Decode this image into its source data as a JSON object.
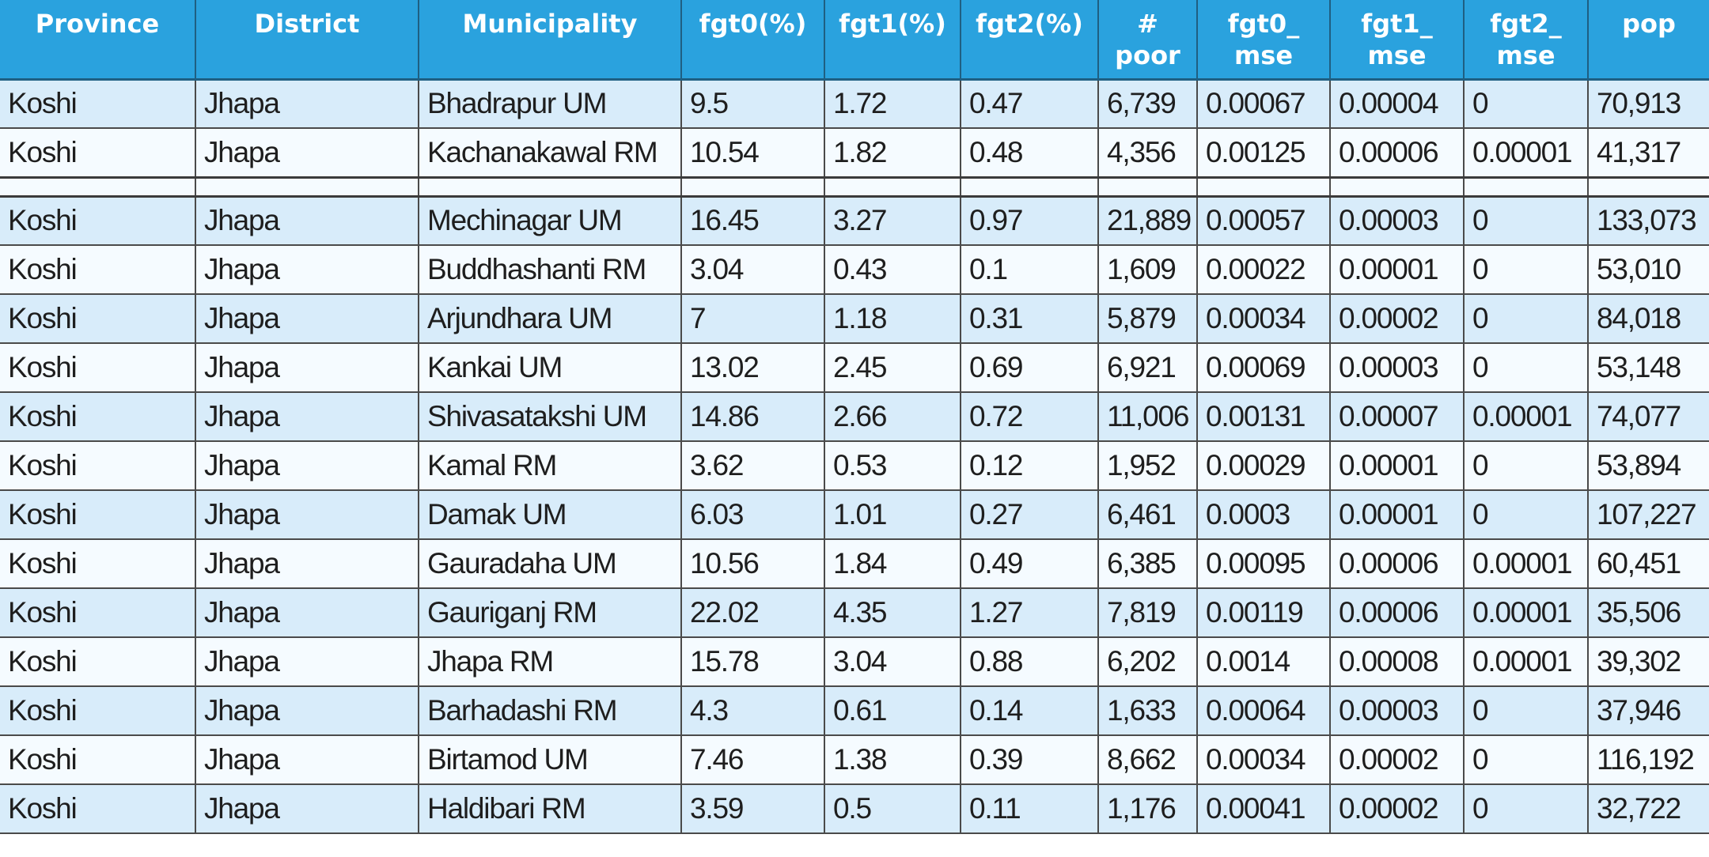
{
  "table": {
    "columns": [
      {
        "key": "province",
        "label": "Province"
      },
      {
        "key": "district",
        "label": "District"
      },
      {
        "key": "municipality",
        "label": "Municipality"
      },
      {
        "key": "fgt0",
        "label": "fgt0(%)"
      },
      {
        "key": "fgt1",
        "label": "fgt1(%)"
      },
      {
        "key": "fgt2",
        "label": "fgt2(%)"
      },
      {
        "key": "poor",
        "label": "#\npoor"
      },
      {
        "key": "fgt0_mse",
        "label": "fgt0_\nmse"
      },
      {
        "key": "fgt1_mse",
        "label": "fgt1_\nmse"
      },
      {
        "key": "fgt2_mse",
        "label": "fgt2_\nmse"
      },
      {
        "key": "pop",
        "label": "pop"
      }
    ],
    "rows": [
      [
        "Koshi",
        "Jhapa",
        "Bhadrapur UM",
        "9.5",
        "1.72",
        "0.47",
        "6,739",
        "0.00067",
        "0.00004",
        "0",
        "70,913"
      ],
      [
        "Koshi",
        "Jhapa",
        "Kachanakawal RM",
        "10.54",
        "1.82",
        "0.48",
        "4,356",
        "0.00125",
        "0.00006",
        "0.00001",
        "41,317"
      ],
      [
        "Koshi",
        "Jhapa",
        "Mechinagar UM",
        "16.45",
        "3.27",
        "0.97",
        "21,889",
        "0.00057",
        "0.00003",
        "0",
        "133,073"
      ],
      [
        "Koshi",
        "Jhapa",
        "Buddhashanti RM",
        "3.04",
        "0.43",
        "0.1",
        "1,609",
        "0.00022",
        "0.00001",
        "0",
        "53,010"
      ],
      [
        "Koshi",
        "Jhapa",
        "Arjundhara UM",
        "7",
        "1.18",
        "0.31",
        "5,879",
        "0.00034",
        "0.00002",
        "0",
        "84,018"
      ],
      [
        "Koshi",
        "Jhapa",
        "Kankai UM",
        "13.02",
        "2.45",
        "0.69",
        "6,921",
        "0.00069",
        "0.00003",
        "0",
        "53,148"
      ],
      [
        "Koshi",
        "Jhapa",
        "Shivasatakshi UM",
        "14.86",
        "2.66",
        "0.72",
        "11,006",
        "0.00131",
        "0.00007",
        "0.00001",
        "74,077"
      ],
      [
        "Koshi",
        "Jhapa",
        "Kamal RM",
        "3.62",
        "0.53",
        "0.12",
        "1,952",
        "0.00029",
        "0.00001",
        "0",
        "53,894"
      ],
      [
        "Koshi",
        "Jhapa",
        "Damak UM",
        "6.03",
        "1.01",
        "0.27",
        "6,461",
        "0.0003",
        "0.00001",
        "0",
        "107,227"
      ],
      [
        "Koshi",
        "Jhapa",
        "Gauradaha UM",
        "10.56",
        "1.84",
        "0.49",
        "6,385",
        "0.00095",
        "0.00006",
        "0.00001",
        "60,451"
      ],
      [
        "Koshi",
        "Jhapa",
        "Gauriganj RM",
        "22.02",
        "4.35",
        "1.27",
        "7,819",
        "0.00119",
        "0.00006",
        "0.00001",
        "35,506"
      ],
      [
        "Koshi",
        "Jhapa",
        "Jhapa RM",
        "15.78",
        "3.04",
        "0.88",
        "6,202",
        "0.0014",
        "0.00008",
        "0.00001",
        "39,302"
      ],
      [
        "Koshi",
        "Jhapa",
        "Barhadashi RM",
        "4.3",
        "0.61",
        "0.14",
        "1,633",
        "0.00064",
        "0.00003",
        "0",
        "37,946"
      ],
      [
        "Koshi",
        "Jhapa",
        "Birtamod UM",
        "7.46",
        "1.38",
        "0.39",
        "8,662",
        "0.00034",
        "0.00002",
        "0",
        "116,192"
      ],
      [
        "Koshi",
        "Jhapa",
        "Haldibari RM",
        "3.59",
        "0.5",
        "0.11",
        "1,176",
        "0.00041",
        "0.00002",
        "0",
        "32,722"
      ]
    ]
  }
}
